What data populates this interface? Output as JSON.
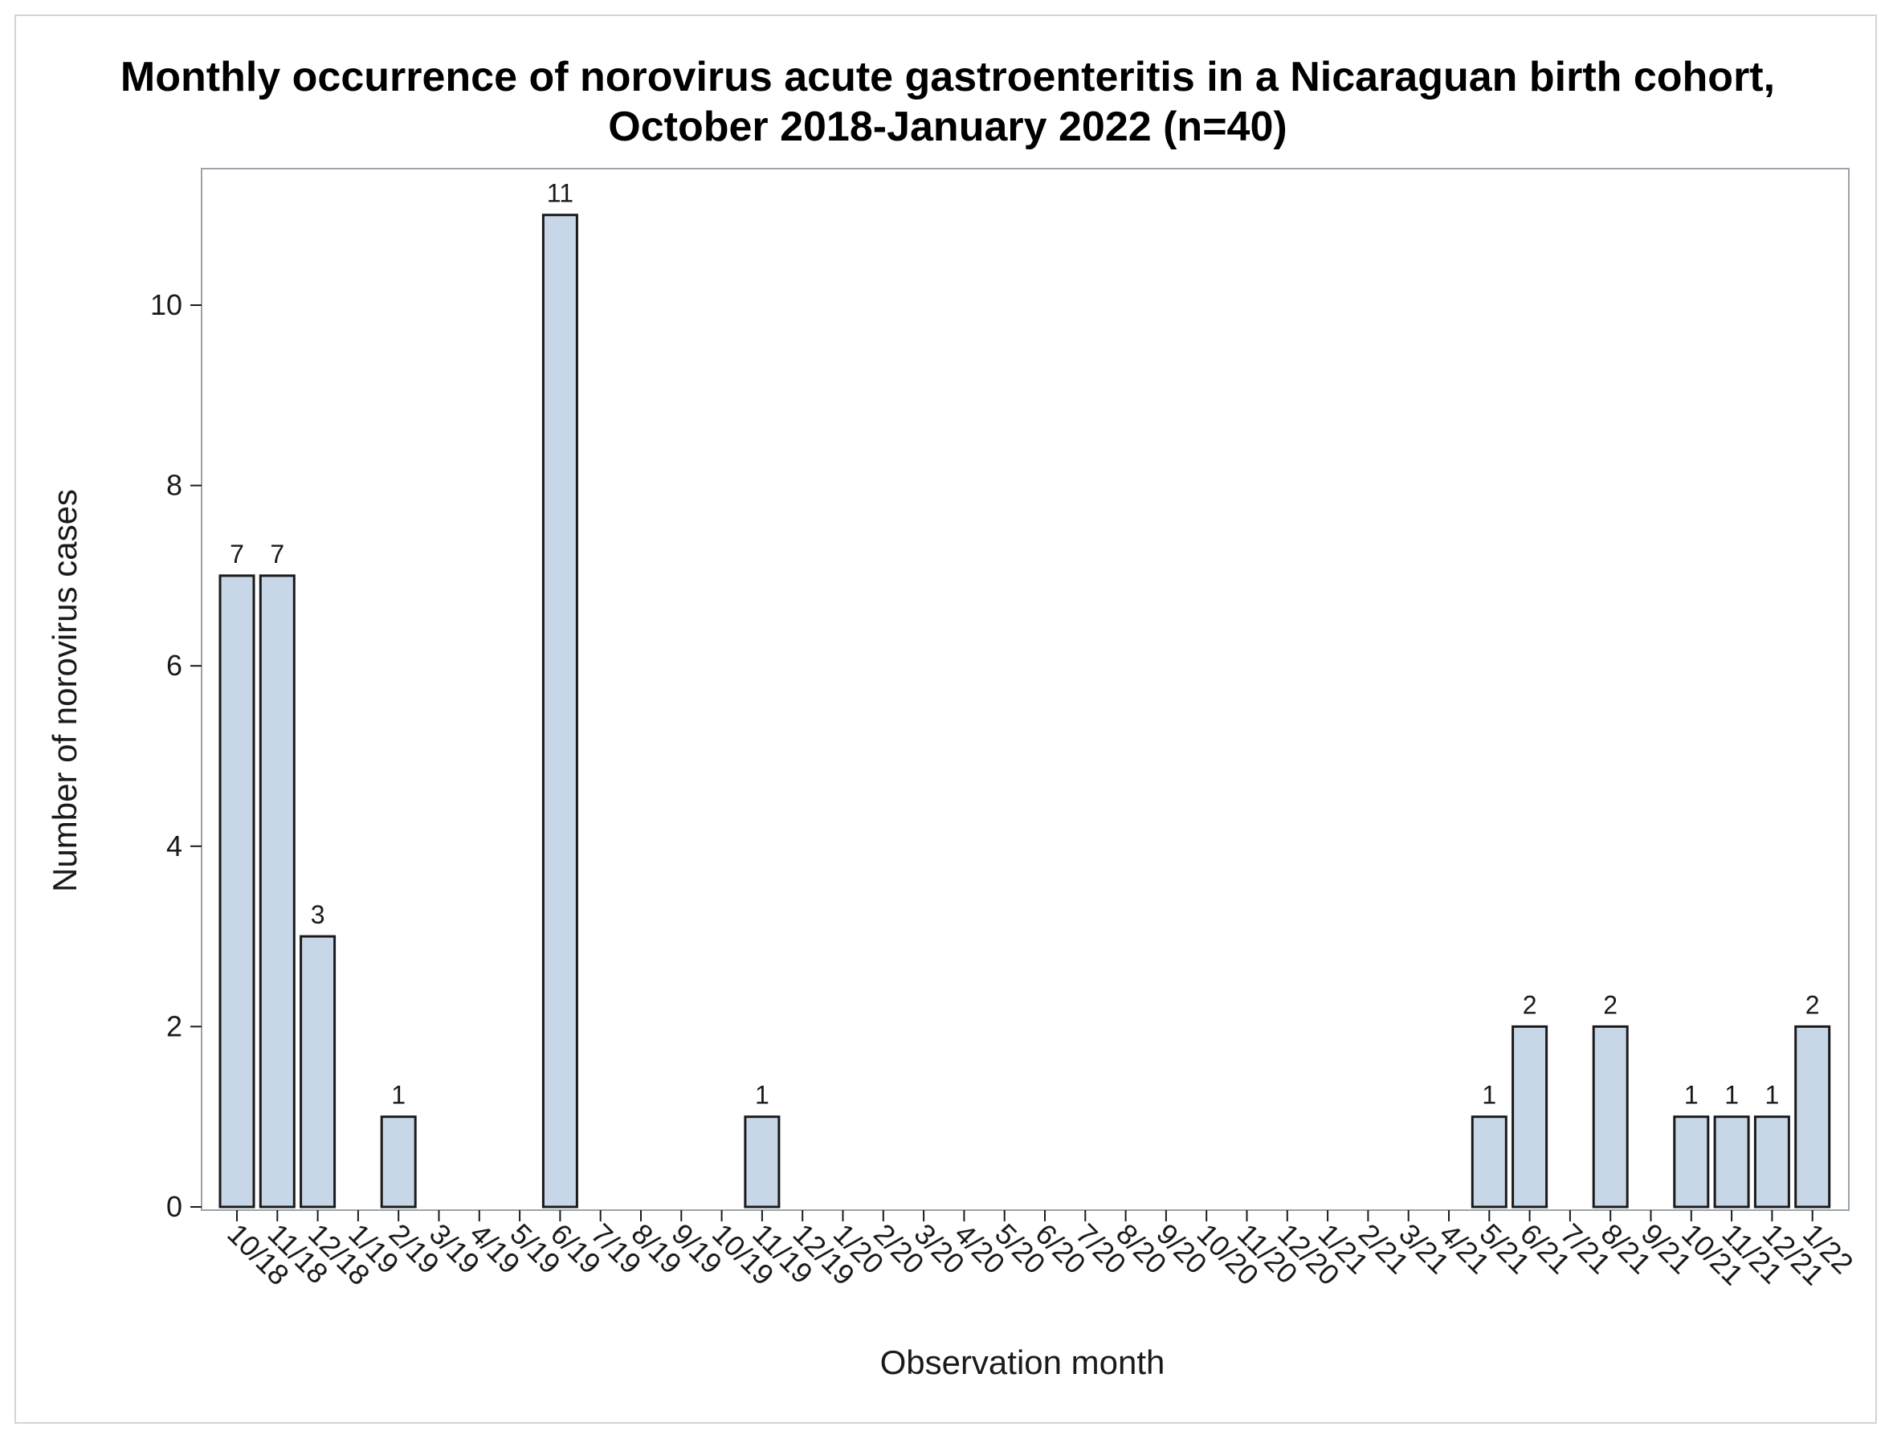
{
  "chart_data": {
    "type": "bar",
    "title": "Monthly occurrence of norovirus acute gastroenteritis in a Nicaraguan birth cohort,",
    "subtitle": "October 2018-January 2022 (n=40)",
    "xlabel": "Observation month",
    "ylabel": "Number of norovirus cases",
    "ylim": [
      0,
      11.8
    ],
    "yticks": [
      0,
      2,
      4,
      6,
      8,
      10
    ],
    "grid": false,
    "bar_color": "#c8d7e8",
    "bar_edge_color": "#1a1a1a",
    "categories": [
      "10/18",
      "11/18",
      "12/18",
      "1/19",
      "2/19",
      "3/19",
      "4/19",
      "5/19",
      "6/19",
      "7/19",
      "8/19",
      "9/19",
      "10/19",
      "11/19",
      "12/19",
      "1/20",
      "2/20",
      "3/20",
      "4/20",
      "5/20",
      "6/20",
      "7/20",
      "8/20",
      "9/20",
      "10/20",
      "11/20",
      "12/20",
      "1/21",
      "2/21",
      "3/21",
      "4/21",
      "5/21",
      "6/21",
      "7/21",
      "8/21",
      "9/21",
      "10/21",
      "11/21",
      "12/21",
      "1/22"
    ],
    "values": [
      7,
      7,
      3,
      0,
      1,
      0,
      0,
      0,
      11,
      0,
      0,
      0,
      0,
      1,
      0,
      0,
      0,
      0,
      0,
      0,
      0,
      0,
      0,
      0,
      0,
      0,
      0,
      0,
      0,
      0,
      0,
      1,
      2,
      0,
      2,
      0,
      1,
      1,
      1,
      2
    ]
  }
}
